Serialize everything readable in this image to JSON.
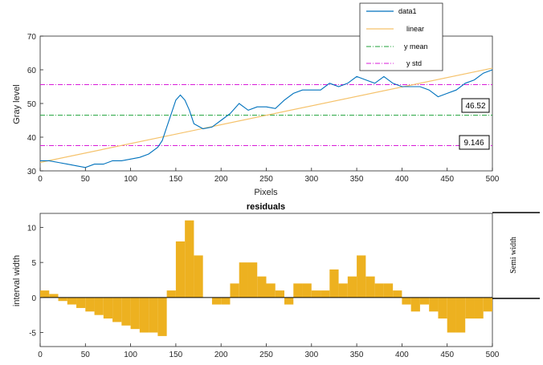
{
  "chart_data": [
    {
      "type": "line",
      "xlabel": "Pixels",
      "ylabel": "Gray level",
      "xlim": [
        0,
        500
      ],
      "ylim": [
        30,
        70
      ],
      "xticks": [
        "0",
        "50",
        "100",
        "150",
        "200",
        "250",
        "300",
        "350",
        "400",
        "450",
        "500"
      ],
      "yticks": [
        "30",
        "40",
        "50",
        "60",
        "70"
      ],
      "legend": {
        "position": "top-right",
        "entries": [
          {
            "name": "data1",
            "color": "#0072BD",
            "style": "solid"
          },
          {
            "name": "linear",
            "color": "#F5C26B",
            "style": "solid"
          },
          {
            "name": "y mean",
            "color": "#1FA23A",
            "style": "dashdot"
          },
          {
            "name": "y std",
            "color": "#D81BD8",
            "style": "dashdot"
          }
        ]
      },
      "series": [
        {
          "name": "data1",
          "x": [
            0,
            10,
            20,
            30,
            40,
            50,
            60,
            70,
            80,
            90,
            100,
            110,
            120,
            130,
            135,
            140,
            145,
            150,
            155,
            160,
            165,
            170,
            180,
            190,
            200,
            210,
            220,
            230,
            240,
            250,
            260,
            270,
            280,
            290,
            300,
            310,
            320,
            330,
            340,
            350,
            360,
            370,
            380,
            390,
            400,
            410,
            420,
            430,
            440,
            450,
            460,
            470,
            480,
            490,
            500
          ],
          "y": [
            33,
            33,
            32.5,
            32,
            31.5,
            31,
            32,
            32,
            33,
            33,
            33.5,
            34,
            35,
            37,
            39,
            43,
            47,
            51,
            52.5,
            51,
            48,
            44,
            42.5,
            43,
            45,
            47,
            50,
            48,
            49,
            49,
            48.5,
            51,
            53,
            54,
            54,
            54,
            56,
            55,
            56,
            58,
            57,
            56,
            58,
            56,
            55,
            55,
            55,
            54,
            52,
            53,
            54,
            56,
            57,
            59,
            60
          ]
        },
        {
          "name": "linear",
          "x": [
            0,
            500
          ],
          "y": [
            32.5,
            60.5
          ]
        },
        {
          "name": "y mean",
          "x": [
            0,
            500
          ],
          "y": [
            46.52,
            46.52
          ]
        },
        {
          "name": "y std",
          "x": [
            0,
            500
          ],
          "y": [
            37.5,
            55.6
          ]
        }
      ],
      "annotations": [
        "46.52",
        "9.146"
      ]
    },
    {
      "type": "bar",
      "title": "residuals",
      "ylabel": "interval width",
      "xlim": [
        0,
        500
      ],
      "ylim": [
        -7,
        12
      ],
      "xticks": [
        "0",
        "50",
        "100",
        "150",
        "200",
        "250",
        "300",
        "350",
        "400",
        "450",
        "500"
      ],
      "yticks": [
        "-5",
        "0",
        "5",
        "10"
      ],
      "bar_color": "#EDB120",
      "x": [
        0,
        10,
        20,
        30,
        40,
        50,
        60,
        70,
        80,
        90,
        100,
        110,
        120,
        130,
        140,
        150,
        160,
        170,
        180,
        190,
        200,
        210,
        220,
        230,
        240,
        250,
        260,
        270,
        280,
        290,
        300,
        310,
        320,
        330,
        340,
        350,
        360,
        370,
        380,
        390,
        400,
        410,
        420,
        430,
        440,
        450,
        460,
        470,
        480,
        490
      ],
      "values": [
        1,
        0.5,
        -0.5,
        -1,
        -1.5,
        -2,
        -2.5,
        -3,
        -3.5,
        -4,
        -4.5,
        -5,
        -5,
        -5.5,
        1,
        8,
        11,
        6,
        0,
        -1,
        -1,
        2,
        5,
        5,
        3,
        2,
        1,
        -1,
        2,
        2,
        1,
        1,
        4,
        2,
        3,
        6,
        3,
        2,
        2,
        1,
        -1,
        -2,
        -1,
        -2,
        -3,
        -5,
        -5,
        -3,
        -3,
        -2
      ]
    }
  ],
  "side_annotation": {
    "label": "Semi width"
  }
}
